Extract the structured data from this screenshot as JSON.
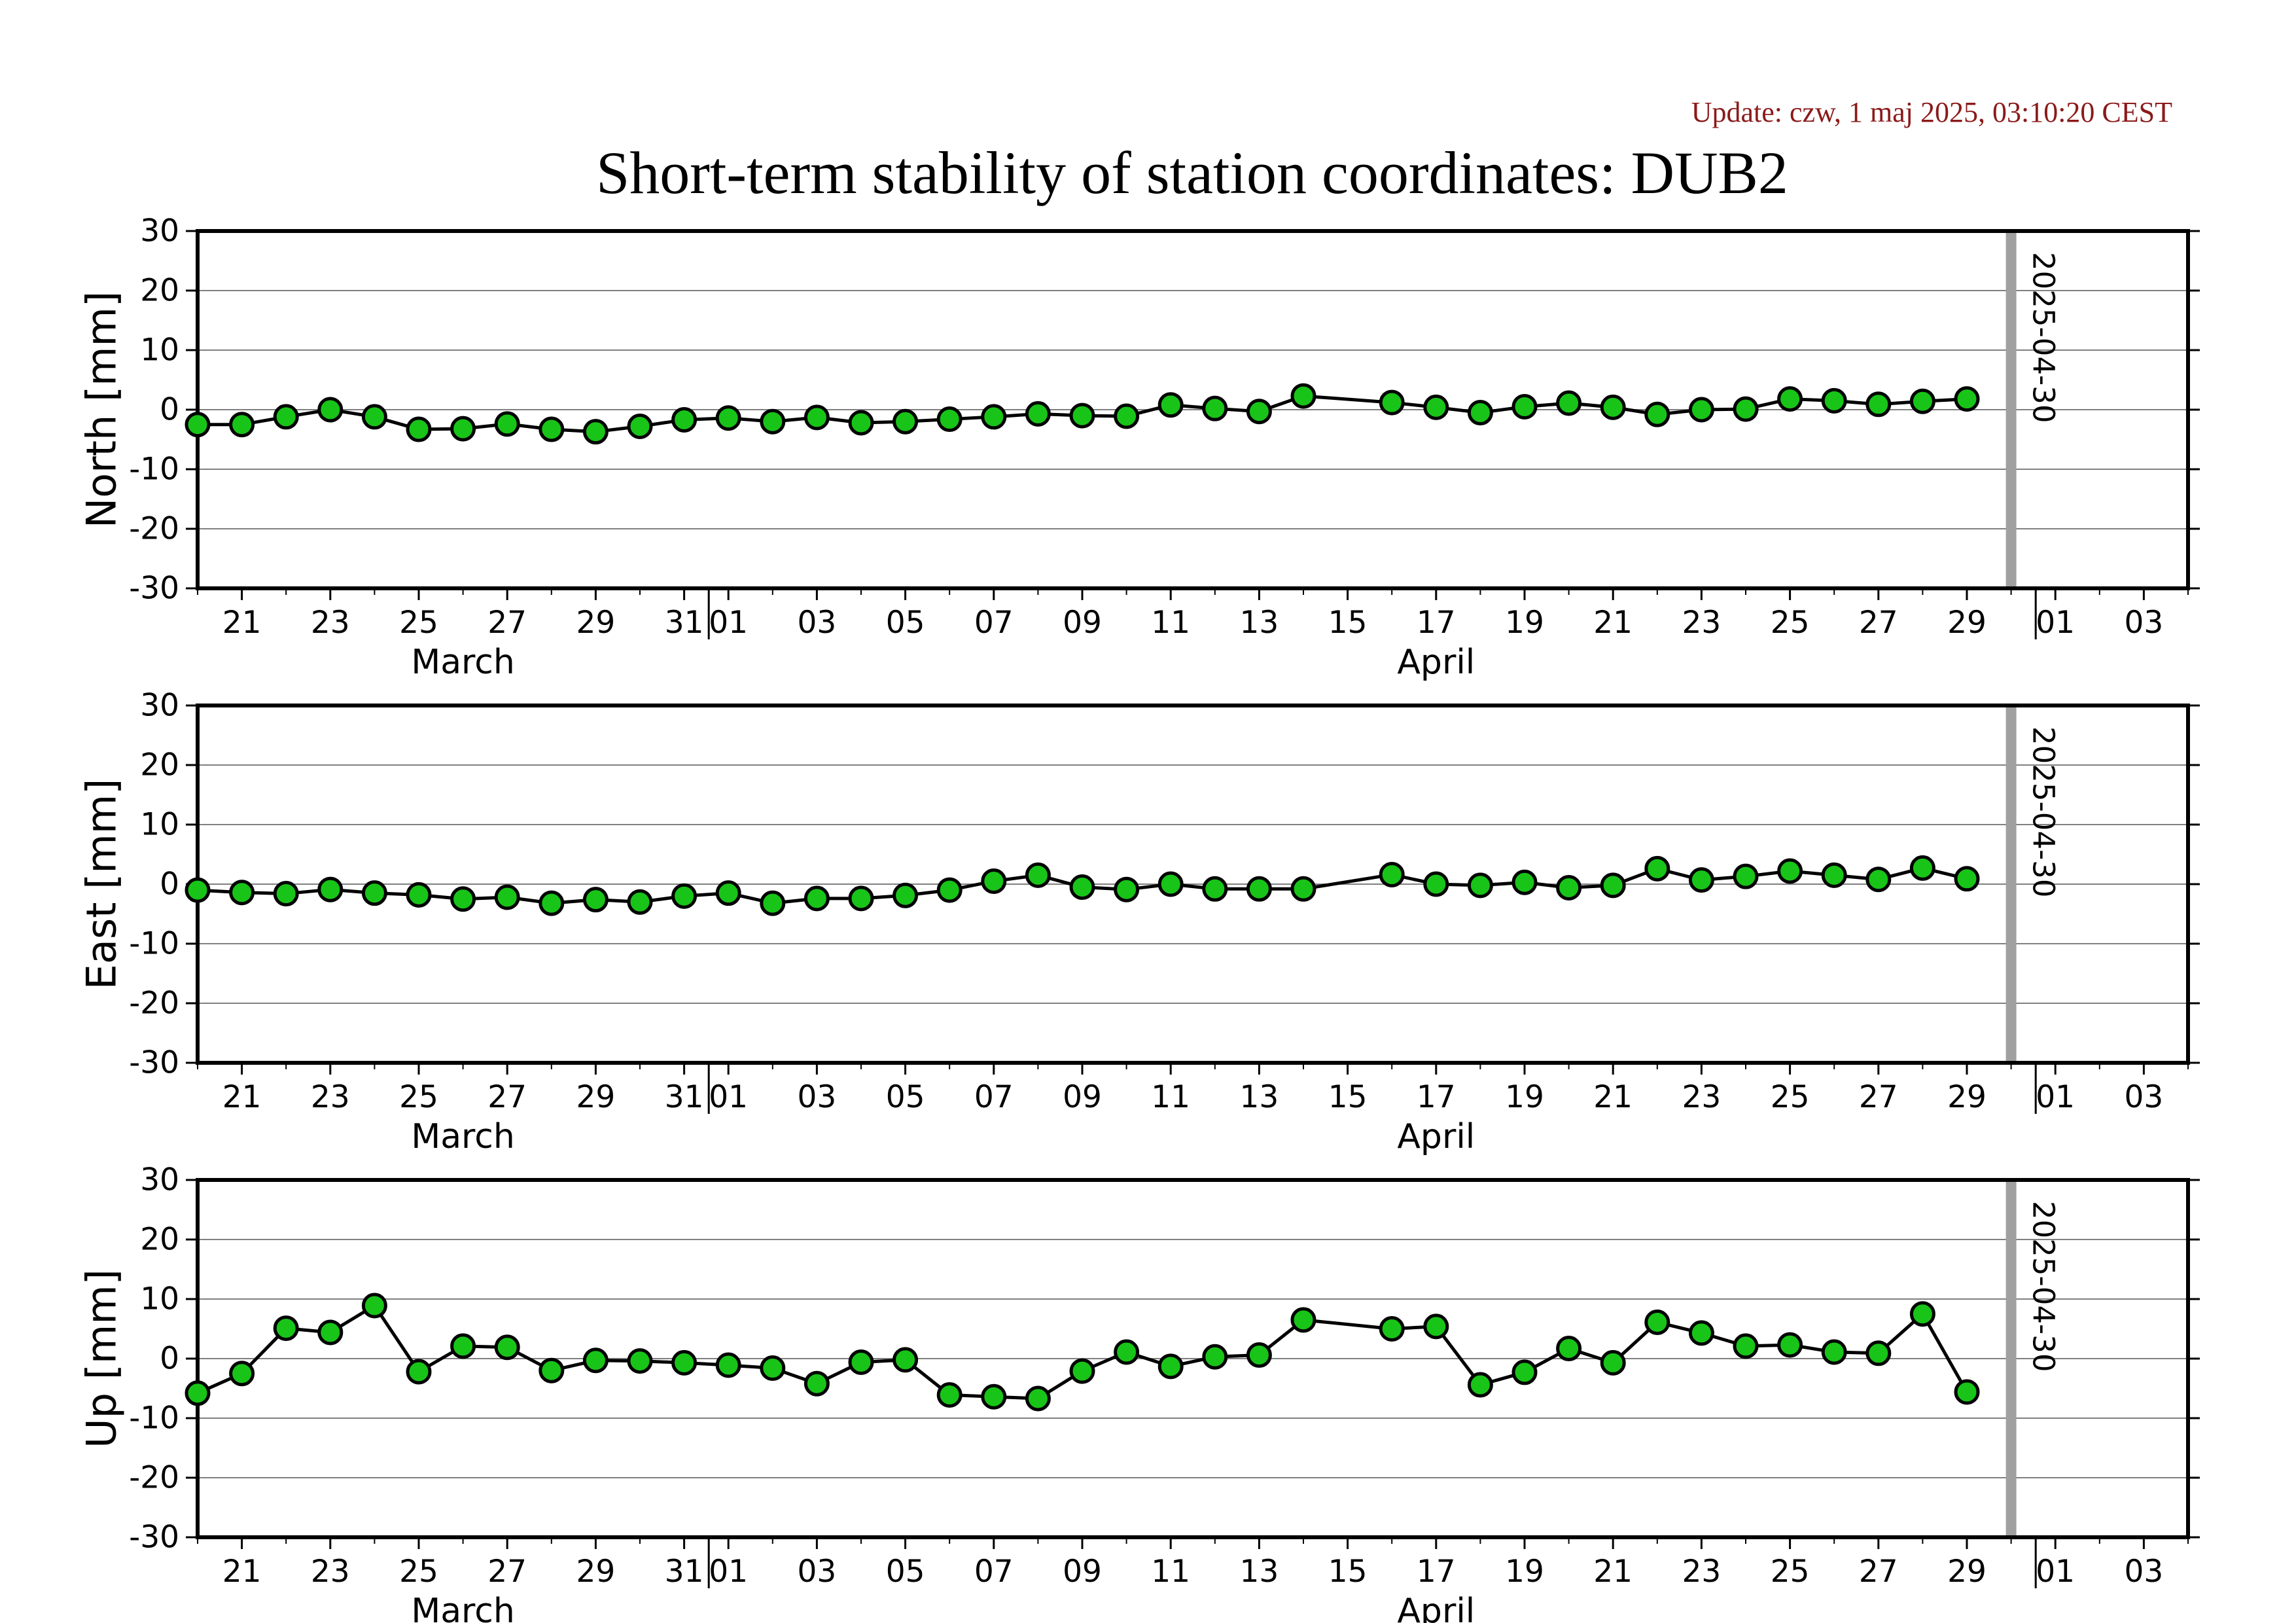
{
  "update_text": "Update: czw, 1 maj 2025, 03:10:20 CEST",
  "colors": {
    "marker_fill": "#18c418",
    "marker_edge": "#000000",
    "line": "#000000",
    "grid": "#808080",
    "marker_line": "#a0a0a0",
    "update_text": "#8b1a1a"
  },
  "chart_data": {
    "type": "line",
    "title": "Short-term stability of station coordinates: DUB2",
    "x_range": [
      "2025-03-20",
      "2025-05-04"
    ],
    "x_tick_labels": [
      {
        "date": "2025-03-21",
        "label": "21"
      },
      {
        "date": "2025-03-23",
        "label": "23"
      },
      {
        "date": "2025-03-25",
        "label": "25"
      },
      {
        "date": "2025-03-27",
        "label": "27"
      },
      {
        "date": "2025-03-29",
        "label": "29"
      },
      {
        "date": "2025-03-31",
        "label": "31"
      },
      {
        "date": "2025-04-01",
        "label": "01"
      },
      {
        "date": "2025-04-03",
        "label": "03"
      },
      {
        "date": "2025-04-05",
        "label": "05"
      },
      {
        "date": "2025-04-07",
        "label": "07"
      },
      {
        "date": "2025-04-09",
        "label": "09"
      },
      {
        "date": "2025-04-11",
        "label": "11"
      },
      {
        "date": "2025-04-13",
        "label": "13"
      },
      {
        "date": "2025-04-15",
        "label": "15"
      },
      {
        "date": "2025-04-17",
        "label": "17"
      },
      {
        "date": "2025-04-19",
        "label": "19"
      },
      {
        "date": "2025-04-21",
        "label": "21"
      },
      {
        "date": "2025-04-23",
        "label": "23"
      },
      {
        "date": "2025-04-25",
        "label": "25"
      },
      {
        "date": "2025-04-27",
        "label": "27"
      },
      {
        "date": "2025-04-29",
        "label": "29"
      },
      {
        "date": "2025-05-01",
        "label": "01"
      },
      {
        "date": "2025-05-03",
        "label": "03"
      }
    ],
    "month_labels": [
      {
        "date": "2025-03-26",
        "label": "March"
      },
      {
        "date": "2025-04-17",
        "label": "April"
      }
    ],
    "month_separators": [
      "2025-04-01",
      "2025-05-01"
    ],
    "marker_line": {
      "date": "2025-04-30",
      "label": "2025-04-30"
    },
    "ylim": [
      -30,
      30
    ],
    "y_ticks": [
      -30,
      -20,
      -10,
      0,
      10,
      20,
      30
    ],
    "y_tick_labels": [
      "-30",
      "-20",
      "-10",
      "0",
      "10",
      "20",
      "30"
    ],
    "grid": true,
    "panels": [
      {
        "ylabel": "North [mm]",
        "points": [
          [
            "2025-03-20",
            -2.5
          ],
          [
            "2025-03-21",
            -2.5
          ],
          [
            "2025-03-22",
            -1.2
          ],
          [
            "2025-03-23",
            0.0
          ],
          [
            "2025-03-24",
            -1.2
          ],
          [
            "2025-03-25",
            -3.3
          ],
          [
            "2025-03-26",
            -3.2
          ],
          [
            "2025-03-27",
            -2.4
          ],
          [
            "2025-03-28",
            -3.3
          ],
          [
            "2025-03-29",
            -3.7
          ],
          [
            "2025-03-30",
            -2.8
          ],
          [
            "2025-03-31",
            -1.7
          ],
          [
            "2025-04-01",
            -1.4
          ],
          [
            "2025-04-02",
            -2.0
          ],
          [
            "2025-04-03",
            -1.3
          ],
          [
            "2025-04-04",
            -2.2
          ],
          [
            "2025-04-05",
            -2.0
          ],
          [
            "2025-04-06",
            -1.6
          ],
          [
            "2025-04-07",
            -1.2
          ],
          [
            "2025-04-08",
            -0.7
          ],
          [
            "2025-04-09",
            -1.0
          ],
          [
            "2025-04-10",
            -1.1
          ],
          [
            "2025-04-11",
            0.8
          ],
          [
            "2025-04-12",
            0.2
          ],
          [
            "2025-04-13",
            -0.3
          ],
          [
            "2025-04-14",
            2.3
          ],
          [
            "2025-04-16",
            1.2
          ],
          [
            "2025-04-17",
            0.4
          ],
          [
            "2025-04-18",
            -0.5
          ],
          [
            "2025-04-19",
            0.5
          ],
          [
            "2025-04-20",
            1.1
          ],
          [
            "2025-04-21",
            0.4
          ],
          [
            "2025-04-22",
            -0.8
          ],
          [
            "2025-04-23",
            0.0
          ],
          [
            "2025-04-24",
            0.1
          ],
          [
            "2025-04-25",
            1.8
          ],
          [
            "2025-04-26",
            1.5
          ],
          [
            "2025-04-27",
            0.9
          ],
          [
            "2025-04-28",
            1.4
          ],
          [
            "2025-04-29",
            1.8
          ]
        ]
      },
      {
        "ylabel": "East [mm]",
        "points": [
          [
            "2025-03-20",
            -1.0
          ],
          [
            "2025-03-21",
            -1.4
          ],
          [
            "2025-03-22",
            -1.6
          ],
          [
            "2025-03-23",
            -0.9
          ],
          [
            "2025-03-24",
            -1.5
          ],
          [
            "2025-03-25",
            -1.8
          ],
          [
            "2025-03-26",
            -2.5
          ],
          [
            "2025-03-27",
            -2.2
          ],
          [
            "2025-03-28",
            -3.2
          ],
          [
            "2025-03-29",
            -2.6
          ],
          [
            "2025-03-30",
            -3.0
          ],
          [
            "2025-03-31",
            -2.0
          ],
          [
            "2025-04-01",
            -1.5
          ],
          [
            "2025-04-02",
            -3.2
          ],
          [
            "2025-04-03",
            -2.4
          ],
          [
            "2025-04-04",
            -2.4
          ],
          [
            "2025-04-05",
            -1.9
          ],
          [
            "2025-04-06",
            -1.0
          ],
          [
            "2025-04-07",
            0.5
          ],
          [
            "2025-04-08",
            1.5
          ],
          [
            "2025-04-09",
            -0.5
          ],
          [
            "2025-04-10",
            -0.9
          ],
          [
            "2025-04-11",
            0.0
          ],
          [
            "2025-04-12",
            -0.8
          ],
          [
            "2025-04-13",
            -0.8
          ],
          [
            "2025-04-14",
            -0.8
          ],
          [
            "2025-04-16",
            1.6
          ],
          [
            "2025-04-17",
            0.0
          ],
          [
            "2025-04-18",
            -0.2
          ],
          [
            "2025-04-19",
            0.3
          ],
          [
            "2025-04-20",
            -0.6
          ],
          [
            "2025-04-21",
            -0.2
          ],
          [
            "2025-04-22",
            2.6
          ],
          [
            "2025-04-23",
            0.7
          ],
          [
            "2025-04-24",
            1.3
          ],
          [
            "2025-04-25",
            2.2
          ],
          [
            "2025-04-26",
            1.5
          ],
          [
            "2025-04-27",
            0.8
          ],
          [
            "2025-04-28",
            2.7
          ],
          [
            "2025-04-29",
            0.9
          ]
        ]
      },
      {
        "ylabel": "Up [mm]",
        "points": [
          [
            "2025-03-20",
            -5.8
          ],
          [
            "2025-03-21",
            -2.5
          ],
          [
            "2025-03-22",
            5.1
          ],
          [
            "2025-03-23",
            4.4
          ],
          [
            "2025-03-24",
            8.9
          ],
          [
            "2025-03-25",
            -2.2
          ],
          [
            "2025-03-26",
            2.1
          ],
          [
            "2025-03-27",
            1.9
          ],
          [
            "2025-03-28",
            -2.0
          ],
          [
            "2025-03-29",
            -0.3
          ],
          [
            "2025-03-30",
            -0.4
          ],
          [
            "2025-03-31",
            -0.7
          ],
          [
            "2025-04-01",
            -1.1
          ],
          [
            "2025-04-02",
            -1.6
          ],
          [
            "2025-04-03",
            -4.2
          ],
          [
            "2025-04-04",
            -0.6
          ],
          [
            "2025-04-05",
            -0.2
          ],
          [
            "2025-04-06",
            -6.1
          ],
          [
            "2025-04-07",
            -6.4
          ],
          [
            "2025-04-08",
            -6.7
          ],
          [
            "2025-04-09",
            -2.1
          ],
          [
            "2025-04-10",
            1.1
          ],
          [
            "2025-04-11",
            -1.3
          ],
          [
            "2025-04-12",
            0.3
          ],
          [
            "2025-04-13",
            0.6
          ],
          [
            "2025-04-14",
            6.5
          ],
          [
            "2025-04-16",
            5.0
          ],
          [
            "2025-04-17",
            5.4
          ],
          [
            "2025-04-18",
            -4.4
          ],
          [
            "2025-04-19",
            -2.3
          ],
          [
            "2025-04-20",
            1.7
          ],
          [
            "2025-04-21",
            -0.7
          ],
          [
            "2025-04-22",
            6.1
          ],
          [
            "2025-04-23",
            4.3
          ],
          [
            "2025-04-24",
            2.1
          ],
          [
            "2025-04-25",
            2.3
          ],
          [
            "2025-04-26",
            1.1
          ],
          [
            "2025-04-27",
            0.9
          ],
          [
            "2025-04-28",
            7.5
          ],
          [
            "2025-04-29",
            -5.6
          ]
        ]
      }
    ]
  }
}
